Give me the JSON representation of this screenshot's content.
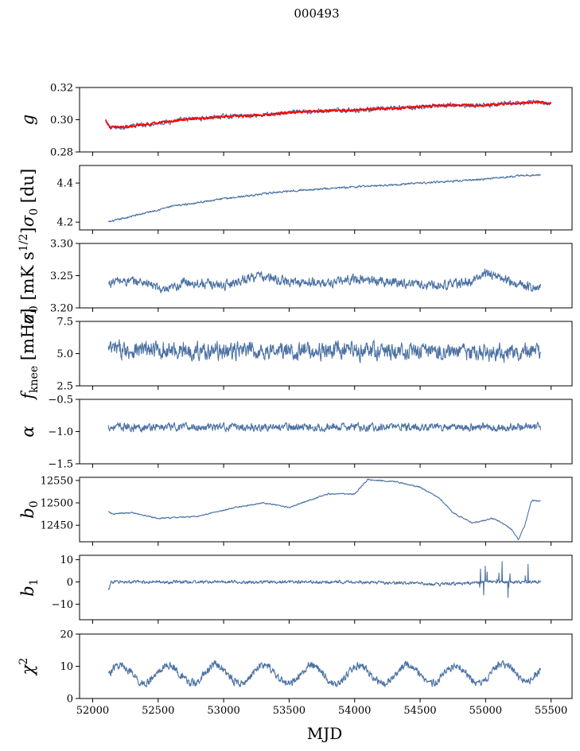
{
  "figure": {
    "suptitle": "000493",
    "xlabel": "MJD"
  },
  "colors": {
    "series": "#4c72a3",
    "fit": "#ff0000",
    "axis": "#000000",
    "background": "#ffffff"
  },
  "chart_data": {
    "type": "line",
    "shared_x": {
      "label": "MJD",
      "range": [
        51900,
        55660
      ],
      "ticks": [
        52000,
        52500,
        53000,
        53500,
        54000,
        54500,
        55000,
        55500
      ]
    },
    "panels": [
      {
        "id": "g",
        "ylabel": "g",
        "ylim": [
          0.28,
          0.32
        ],
        "yticks": [
          0.28,
          0.3,
          0.32
        ],
        "ytick_labels": [
          "0.28",
          "0.30",
          "0.32"
        ],
        "series": [
          {
            "name": "g",
            "x": [
              52100,
              52150,
              52300,
              52500,
              52700,
              53000,
              53300,
              53600,
              54000,
              54300,
              54700,
              55000,
              55200,
              55400,
              55500
            ],
            "y": [
              0.298,
              0.295,
              0.296,
              0.298,
              0.3,
              0.302,
              0.303,
              0.305,
              0.306,
              0.307,
              0.309,
              0.309,
              0.31,
              0.311,
              0.31
            ],
            "noise": 0.0012
          },
          {
            "name": "fit",
            "x": [
              52100,
              52130,
              52300,
              52500,
              52700,
              53000,
              53300,
              53600,
              54000,
              54300,
              54700,
              55000,
              55200,
              55400,
              55500
            ],
            "y": [
              0.3,
              0.295,
              0.296,
              0.298,
              0.3,
              0.302,
              0.303,
              0.305,
              0.306,
              0.307,
              0.309,
              0.309,
              0.31,
              0.311,
              0.31
            ],
            "noise": 0.0006
          }
        ]
      },
      {
        "id": "sigma0",
        "ylabel": "σ0 [du]",
        "ylim": [
          4.16,
          4.49
        ],
        "yticks": [
          4.2,
          4.4
        ],
        "ytick_labels": [
          "4.2",
          "4.4"
        ],
        "series": [
          {
            "name": "sigma0",
            "x": [
              52120,
              52300,
              52600,
              53000,
              53500,
              54000,
              54500,
              55000,
              55300,
              55420
            ],
            "y": [
              4.2,
              4.23,
              4.28,
              4.32,
              4.36,
              4.38,
              4.4,
              4.42,
              4.44,
              4.44
            ],
            "noise": 0.004
          }
        ]
      },
      {
        "id": "sigma0_mk",
        "ylabel": "σ0 [mK s^1/2]",
        "ylim": [
          3.2,
          3.3
        ],
        "yticks": [
          3.2,
          3.25,
          3.3
        ],
        "ytick_labels": [
          "3.20",
          "3.25",
          "3.30"
        ],
        "series": [
          {
            "name": "sigma0_mk",
            "x": [
              52120,
              52180,
              52400,
              52560,
              52700,
              53000,
              53250,
              53500,
              53800,
              54000,
              54300,
              54600,
              54900,
              55000,
              55200,
              55420
            ],
            "y": [
              3.237,
              3.242,
              3.24,
              3.225,
              3.24,
              3.235,
              3.25,
              3.24,
              3.238,
              3.245,
              3.24,
              3.235,
              3.24,
              3.255,
              3.24,
              3.23
            ],
            "noise": 0.006
          }
        ]
      },
      {
        "id": "fknee",
        "ylabel": "f_knee [mHz]",
        "ylim": [
          2.5,
          7.5
        ],
        "yticks": [
          2.5,
          5.0,
          7.5
        ],
        "ytick_labels": [
          "2.5",
          "5.0",
          "7.5"
        ],
        "series": [
          {
            "name": "fknee",
            "x": [
              52120,
              53000,
              54000,
              55000,
              55420
            ],
            "y": [
              5.3,
              5.2,
              5.2,
              5.1,
              5.0
            ],
            "noise": 0.55
          }
        ]
      },
      {
        "id": "alpha",
        "ylabel": "α",
        "ylim": [
          -1.5,
          -0.5
        ],
        "yticks": [
          -1.5,
          -1.0,
          -0.5
        ],
        "ytick_labels": [
          "−1.5",
          "−1.0",
          "−0.5"
        ],
        "series": [
          {
            "name": "alpha",
            "x": [
              52120,
              53000,
              54000,
              55000,
              55420
            ],
            "y": [
              -0.93,
              -0.93,
              -0.93,
              -0.93,
              -0.93
            ],
            "noise": 0.05
          }
        ]
      },
      {
        "id": "b0",
        "ylabel": "b0",
        "ylim": [
          12413,
          12557
        ],
        "yticks": [
          12450,
          12500,
          12550
        ],
        "ytick_labels": [
          "12450",
          "12500",
          "12550"
        ],
        "series": [
          {
            "name": "b0",
            "x": [
              52120,
              52150,
              52300,
              52500,
              52800,
              53100,
              53300,
              53500,
              53650,
              53800,
              54000,
              54100,
              54300,
              54500,
              54650,
              54750,
              54900,
              55050,
              55100,
              55150,
              55200,
              55250,
              55300,
              55350,
              55420
            ],
            "y": [
              12480,
              12475,
              12478,
              12465,
              12470,
              12490,
              12500,
              12490,
              12505,
              12520,
              12520,
              12552,
              12548,
              12535,
              12510,
              12478,
              12455,
              12465,
              12460,
              12450,
              12440,
              12418,
              12450,
              12505,
              12505
            ],
            "noise": 1.2
          }
        ]
      },
      {
        "id": "b1",
        "ylabel": "b1",
        "ylim": [
          -17,
          12
        ],
        "yticks": [
          -10,
          0,
          10
        ],
        "ytick_labels": [
          "−10",
          "0",
          "10"
        ],
        "series": [
          {
            "name": "b1",
            "x": [
              52120,
              52140,
              53000,
              54000,
              54700,
              55000,
              55420
            ],
            "y": [
              -4,
              0,
              0,
              0,
              -1,
              0,
              0
            ],
            "noise": 0.6
          }
        ]
      },
      {
        "id": "chi2",
        "ylabel": "χ2",
        "ylim": [
          0,
          20
        ],
        "yticks": [
          0,
          10,
          20
        ],
        "ytick_labels": [
          "0",
          "10",
          "20"
        ],
        "series": [
          {
            "name": "chi2",
            "x": [
              52120,
              53000,
              54000,
              55000,
              55420
            ],
            "y": [
              7.5,
              7.5,
              7.5,
              7.5,
              8.5
            ],
            "noise": 1.0,
            "seasonal_amplitude": 2.8,
            "seasonal_period_days": 365
          }
        ]
      }
    ]
  }
}
